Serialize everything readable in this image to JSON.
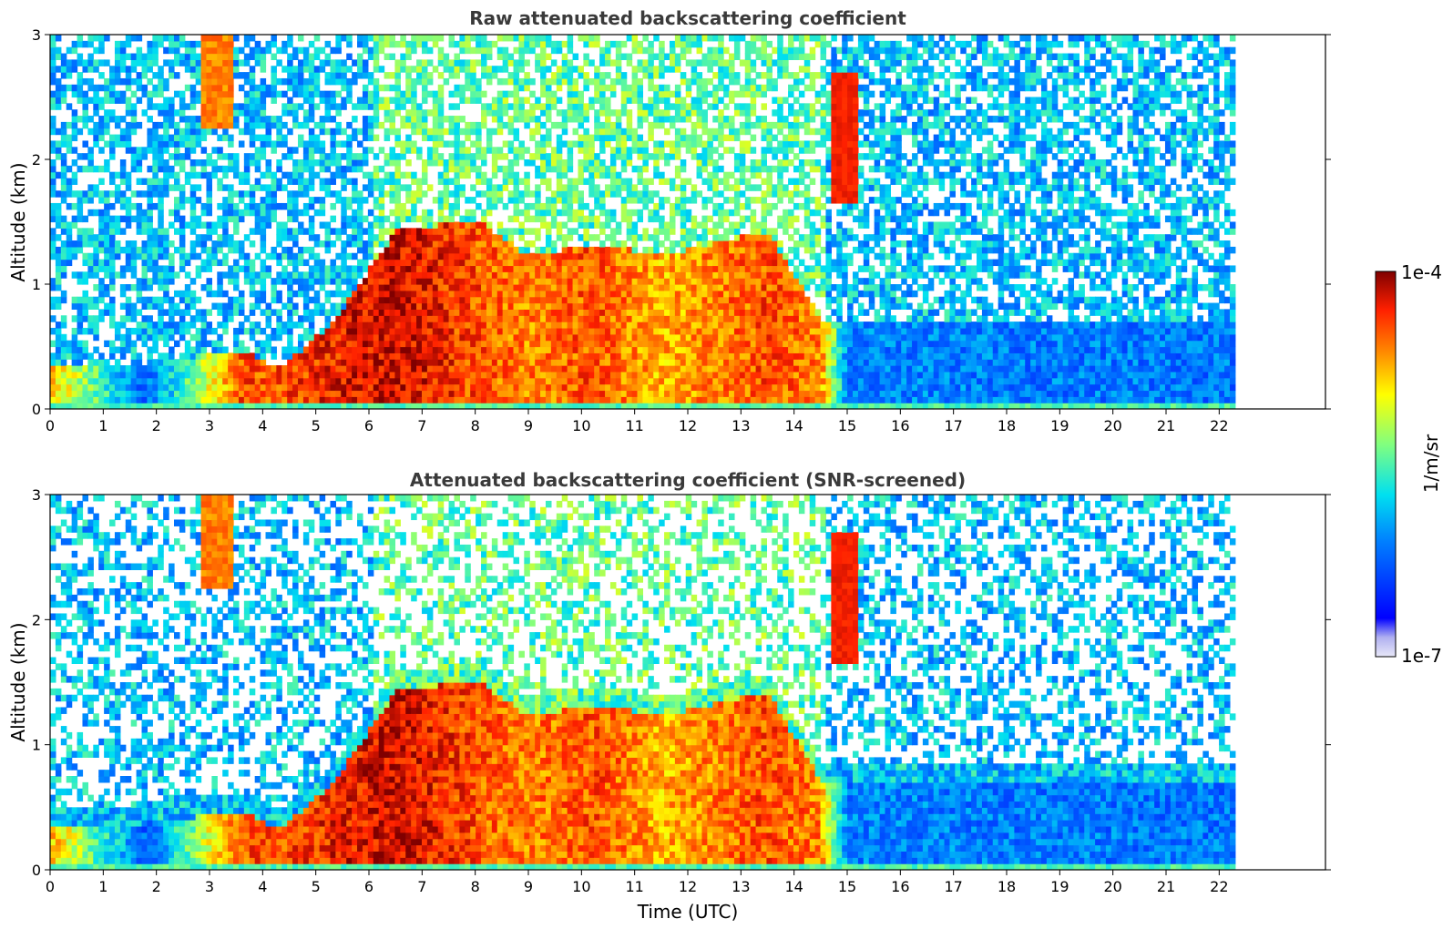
{
  "chart_data": [
    {
      "type": "heatmap",
      "title": "Raw attenuated backscattering coefficient",
      "xlabel": "",
      "ylabel": "Altitude (km)",
      "xlim": [
        0,
        24
      ],
      "ylim": [
        0,
        3
      ],
      "x_ticks": [
        "0",
        "1",
        "2",
        "3",
        "4",
        "5",
        "6",
        "7",
        "8",
        "9",
        "10",
        "11",
        "12",
        "13",
        "14",
        "15",
        "16",
        "17",
        "18",
        "19",
        "20",
        "21",
        "22"
      ],
      "y_ticks": [
        "0",
        "1",
        "2",
        "3"
      ],
      "data_time_range": [
        0,
        22.3
      ],
      "colormap": "jet",
      "color_scale": "log",
      "color_range": [
        "1e-7",
        "1e-4"
      ],
      "low_layer_profile": [
        {
          "t": 0.0,
          "top": 0.3,
          "level": 0.75
        },
        {
          "t": 1.8,
          "top": 0.35,
          "level": 0.25
        },
        {
          "t": 3.6,
          "top": 0.45,
          "level": 0.85
        },
        {
          "t": 4.3,
          "top": 0.3,
          "level": 0.85
        },
        {
          "t": 5.3,
          "top": 0.65,
          "level": 0.9
        },
        {
          "t": 6.5,
          "top": 1.4,
          "level": 0.95
        },
        {
          "t": 8.0,
          "top": 1.5,
          "level": 0.85
        },
        {
          "t": 9.0,
          "top": 1.2,
          "level": 0.8
        },
        {
          "t": 10.3,
          "top": 1.3,
          "level": 0.85
        },
        {
          "t": 11.5,
          "top": 1.2,
          "level": 0.75
        },
        {
          "t": 12.5,
          "top": 1.3,
          "level": 0.8
        },
        {
          "t": 13.5,
          "top": 1.4,
          "level": 0.85
        },
        {
          "t": 14.5,
          "top": 0.7,
          "level": 0.8
        },
        {
          "t": 15.0,
          "top": 0.7,
          "level": 0.3
        },
        {
          "t": 22.3,
          "top": 0.7,
          "level": 0.28
        }
      ]
    },
    {
      "type": "heatmap",
      "title": "Attenuated backscattering coefficient (SNR-screened)",
      "xlabel": "Time (UTC)",
      "ylabel": "Altitude (km)",
      "xlim": [
        0,
        24
      ],
      "ylim": [
        0,
        3
      ],
      "x_ticks": [
        "0",
        "1",
        "2",
        "3",
        "4",
        "5",
        "6",
        "7",
        "8",
        "9",
        "10",
        "11",
        "12",
        "13",
        "14",
        "15",
        "16",
        "17",
        "18",
        "19",
        "20",
        "21",
        "22"
      ],
      "y_ticks": [
        "0",
        "1",
        "2",
        "3"
      ],
      "data_time_range": [
        0,
        22.3
      ],
      "colormap": "jet",
      "color_scale": "log",
      "color_range": [
        "1e-7",
        "1e-4"
      ]
    }
  ],
  "colorbar": {
    "label": "1/m/sr",
    "max_label": "1e-4",
    "min_label": "1e-7"
  }
}
